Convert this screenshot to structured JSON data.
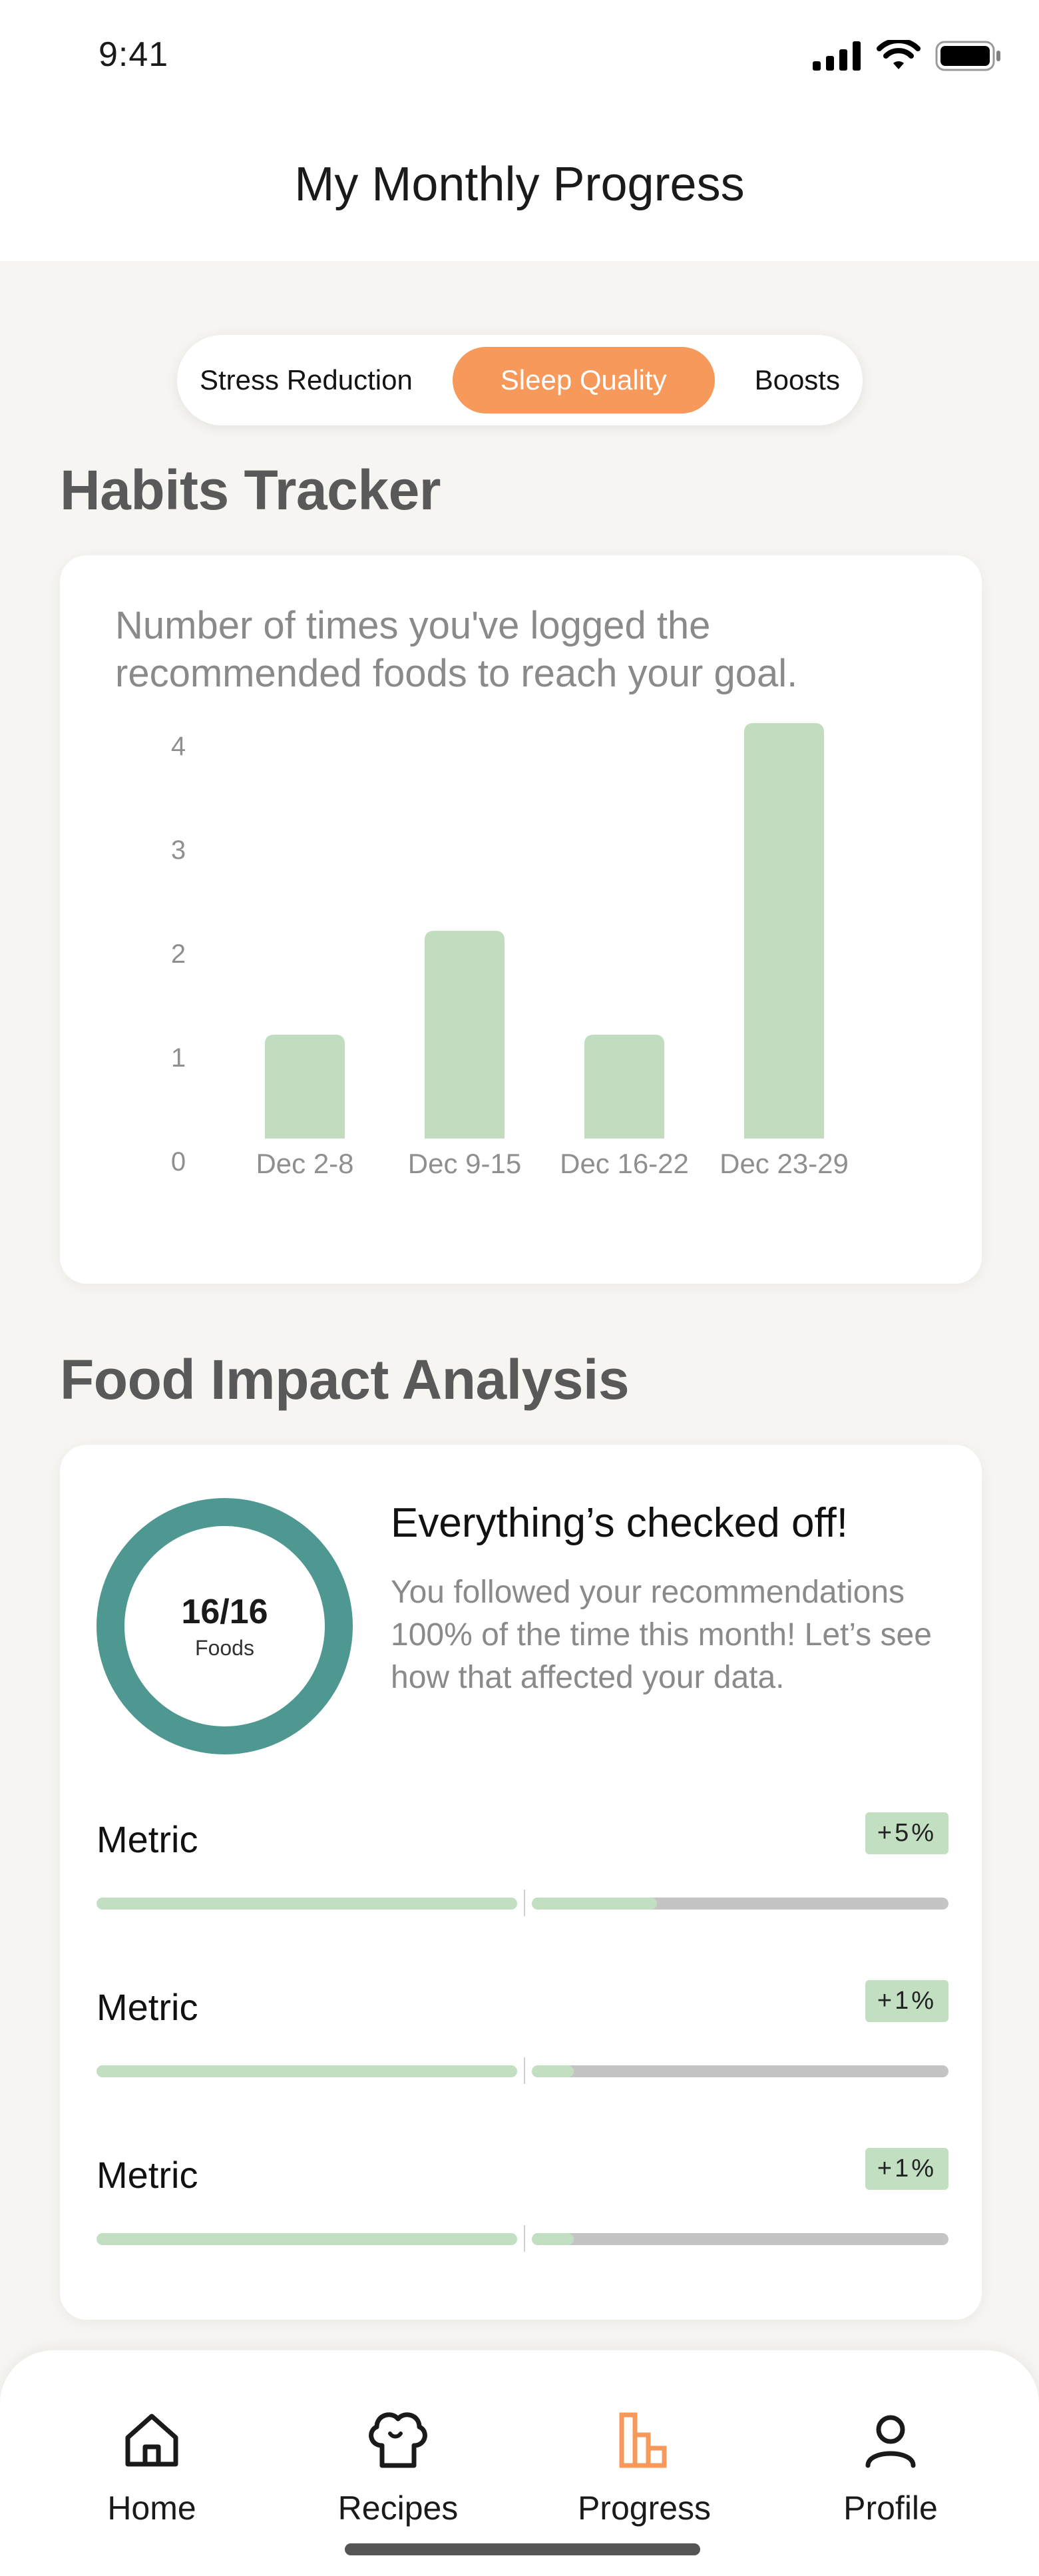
{
  "status_bar": {
    "time": "9:41"
  },
  "header": {
    "title": "My Monthly Progress"
  },
  "segments": [
    {
      "label": "Stress Reduction",
      "active": false
    },
    {
      "label": "Sleep Quality",
      "active": true
    },
    {
      "label": "Boosts",
      "active": false
    }
  ],
  "habits": {
    "title": "Habits Tracker",
    "description": "Number of times you've logged the recommended foods to reach your goal."
  },
  "chart_data": {
    "type": "bar",
    "categories": [
      "Dec 2-8",
      "Dec 9-15",
      "Dec 16-22",
      "Dec 23-29"
    ],
    "values": [
      1,
      2,
      1,
      4
    ],
    "ylim": [
      0,
      4
    ],
    "yticks": [
      0,
      1,
      2,
      3,
      4
    ],
    "bar_color": "#c2dcc0",
    "grid": false
  },
  "food_impact": {
    "title": "Food Impact Analysis",
    "ring_value": "16/16",
    "ring_label": "Foods",
    "ring_color": "#4f9891",
    "headline": "Everything’s checked off!",
    "description": "You followed your recommendations 100% of the time this month! Let’s see how that affected your data.",
    "metrics": [
      {
        "label": "Metric",
        "badge": "+5%",
        "right_fill": 0.3
      },
      {
        "label": "Metric",
        "badge": "+1%",
        "right_fill": 0.1
      },
      {
        "label": "Metric",
        "badge": "+1%",
        "right_fill": 0.1
      }
    ]
  },
  "tabs": [
    {
      "label": "Home",
      "icon": "home-icon",
      "active": false
    },
    {
      "label": "Recipes",
      "icon": "chef-hat-icon",
      "active": false
    },
    {
      "label": "Progress",
      "icon": "bar-chart-icon",
      "active": true
    },
    {
      "label": "Profile",
      "icon": "person-icon",
      "active": false
    }
  ],
  "colors": {
    "accent": "#f7995a",
    "teal": "#4f9891",
    "green_light": "#c2e0c1",
    "background": "#f7f5f1"
  }
}
